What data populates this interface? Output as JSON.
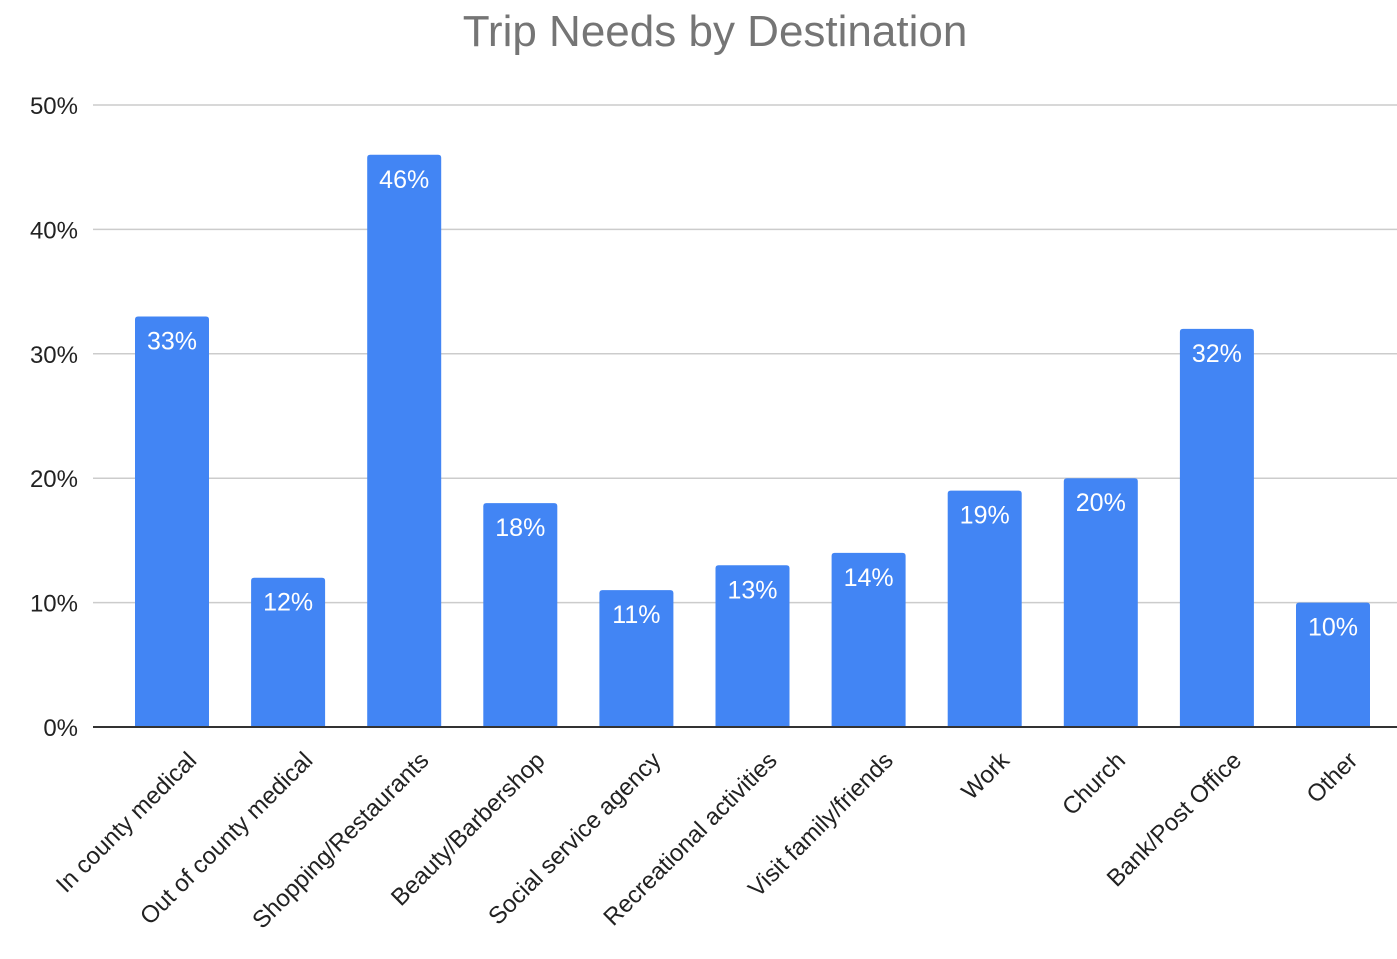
{
  "chart_data": {
    "type": "bar",
    "title": "Trip Needs by Destination",
    "xlabel": "",
    "ylabel": "",
    "ylim": [
      0,
      50
    ],
    "y_ticks": [
      "0%",
      "10%",
      "20%",
      "30%",
      "40%",
      "50%"
    ],
    "y_tick_values": [
      0,
      10,
      20,
      30,
      40,
      50
    ],
    "grid": true,
    "legend": "none",
    "categories": [
      "In county medical",
      "Out of county medical",
      "Shopping/Restaurants",
      "Beauty/Barbershop",
      "Social service agency",
      "Recreational activities",
      "Visit family/friends",
      "Work",
      "Church",
      "Bank/Post Office",
      "Other"
    ],
    "values": [
      33,
      12,
      46,
      18,
      11,
      13,
      14,
      19,
      20,
      32,
      10
    ],
    "data_labels": [
      "33%",
      "12%",
      "46%",
      "18%",
      "11%",
      "13%",
      "14%",
      "19%",
      "20%",
      "32%",
      "10%"
    ],
    "bar_color": "#4285f4"
  }
}
